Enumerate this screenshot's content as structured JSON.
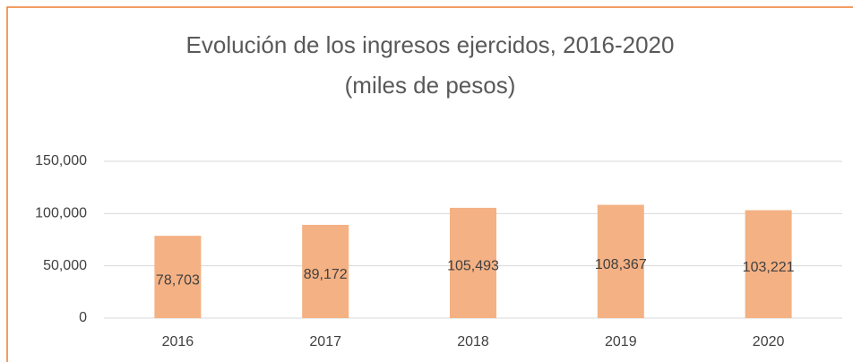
{
  "chart_data": {
    "type": "bar",
    "title": "Evolución de los ingresos ejercidos, 2016-2020",
    "subtitle": "(miles de pesos)",
    "categories": [
      "2016",
      "2017",
      "2018",
      "2019",
      "2020"
    ],
    "values": [
      78703,
      89172,
      105493,
      108367,
      103221
    ],
    "value_labels": [
      "78,703",
      "89,172",
      "105,493",
      "108,367",
      "103,221"
    ],
    "color": "#f4b183",
    "ylim": [
      0,
      150000
    ],
    "yticks": [
      0,
      {
        "value": 50000,
        "label": "50,000"
      },
      {
        "value": 100000,
        "label": "100,000"
      },
      {
        "value": 150000,
        "label": "150,000"
      }
    ],
    "grid": true
  }
}
